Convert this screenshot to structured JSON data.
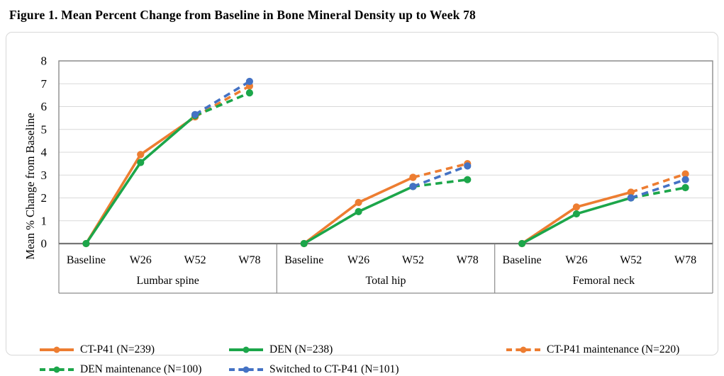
{
  "figure_title": "Figure 1. Mean Percent Change from Baseline in Bone Mineral Density up to Week 78",
  "chart_data": {
    "type": "line",
    "title": "Figure 1. Mean Percent Change from Baseline in Bone Mineral Density up to Week 78",
    "ylabel": "Mean % Change from Baseline",
    "ylim": [
      0,
      8
    ],
    "ytick_interval": 1,
    "yticks": [
      0,
      1,
      2,
      3,
      4,
      5,
      6,
      7,
      8
    ],
    "grid": "horizontal",
    "gridline_color": "#d9d9d9",
    "axis_color": "#8c8c8c",
    "legend_position": "bottom",
    "groups": [
      "Lumbar spine",
      "Total hip",
      "Femoral neck"
    ],
    "timepoints": [
      "Baseline",
      "W26",
      "W52",
      "W78"
    ],
    "series": [
      {
        "label": "CT-P41 (N=239)",
        "color": "#ED7D31",
        "dash": false,
        "values": [
          [
            0,
            3.9,
            5.55,
            null
          ],
          [
            0,
            1.8,
            2.9,
            null
          ],
          [
            0,
            1.6,
            2.25,
            null
          ]
        ]
      },
      {
        "label": "DEN (N=238)",
        "color": "#1CA64A",
        "dash": false,
        "values": [
          [
            0,
            3.55,
            5.6,
            null
          ],
          [
            0,
            1.4,
            2.5,
            null
          ],
          [
            0,
            1.3,
            2.0,
            null
          ]
        ]
      },
      {
        "label": "CT-P41 maintenance (N=220)",
        "color": "#ED7D31",
        "dash": true,
        "values": [
          [
            null,
            null,
            5.55,
            6.9
          ],
          [
            null,
            null,
            2.9,
            3.5
          ],
          [
            null,
            null,
            2.25,
            3.05
          ]
        ]
      },
      {
        "label": "DEN maintenance (N=100)",
        "color": "#1CA64A",
        "dash": true,
        "values": [
          [
            null,
            null,
            5.6,
            6.6
          ],
          [
            null,
            null,
            2.5,
            2.8
          ],
          [
            null,
            null,
            2.0,
            2.45
          ]
        ]
      },
      {
        "label": "Switched to CT-P41 (N=101)",
        "color": "#4472C4",
        "dash": true,
        "values": [
          [
            null,
            null,
            5.65,
            7.1
          ],
          [
            null,
            null,
            2.5,
            3.4
          ],
          [
            null,
            null,
            2.0,
            2.8
          ]
        ]
      }
    ]
  }
}
